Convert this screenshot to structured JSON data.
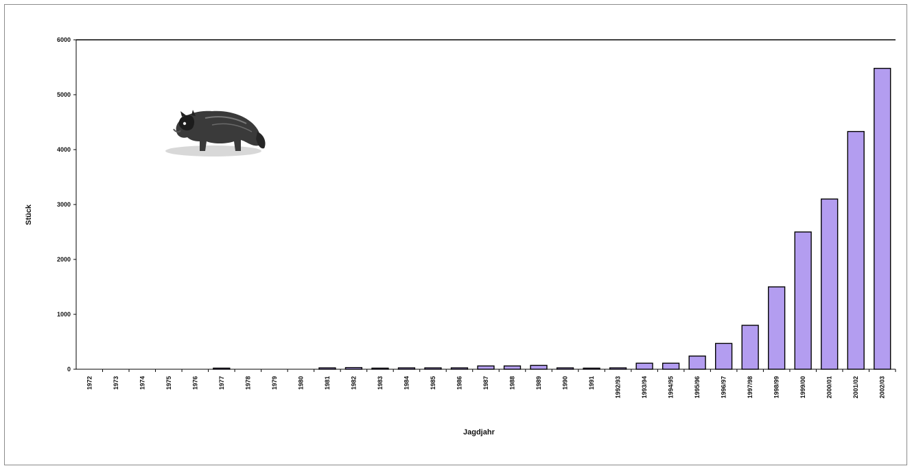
{
  "chart_data": {
    "type": "bar",
    "title": "",
    "xlabel": "Jagdjahr",
    "ylabel": "Stück",
    "ylim": [
      0,
      6000
    ],
    "yticks": [
      "0",
      "1000",
      "2000",
      "3000",
      "4000",
      "5000",
      "6000"
    ],
    "categories": [
      "1972",
      "1973",
      "1974",
      "1975",
      "1976",
      "1977",
      "1978",
      "1979",
      "1980",
      "1981",
      "1982",
      "1983",
      "1984",
      "1985",
      "1986",
      "1987",
      "1988",
      "1989",
      "1990",
      "1991",
      "1992/93",
      "1993/94",
      "1994/95",
      "1995/96",
      "1996/97",
      "1997/98",
      "1998/99",
      "1999/00",
      "2000/01",
      "2001/02",
      "2002/03"
    ],
    "values": [
      0,
      0,
      0,
      0,
      0,
      20,
      0,
      0,
      0,
      25,
      30,
      20,
      25,
      25,
      25,
      60,
      60,
      70,
      25,
      20,
      25,
      110,
      110,
      240,
      470,
      800,
      1500,
      2500,
      3100,
      4330,
      5480
    ],
    "grid": false,
    "bar_color": "#b39df0",
    "bar_edge_color": "#000000"
  },
  "illustration": {
    "icon": "raccoon-dog-icon"
  }
}
